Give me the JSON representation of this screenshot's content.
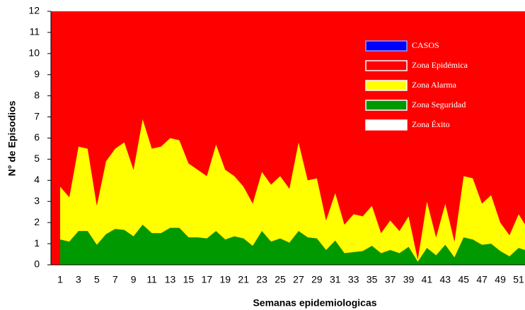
{
  "chart_data": {
    "type": "stacked_area",
    "xlabel": "Semanas epidemiologicas",
    "ylabel": "N° de Episodios",
    "categories": [
      "1",
      null,
      "3",
      null,
      "5",
      null,
      "7",
      null,
      "9",
      null,
      "11",
      null,
      "13",
      null,
      "15",
      null,
      "17",
      null,
      "19",
      null,
      "21",
      null,
      "23",
      null,
      "25",
      null,
      "27",
      null,
      "29",
      null,
      "31",
      null,
      "33",
      null,
      "35",
      null,
      "37",
      null,
      "39",
      null,
      "41",
      null,
      "43",
      null,
      "45",
      null,
      "47",
      null,
      "49",
      null,
      "51",
      null
    ],
    "ylim": [
      0,
      12
    ],
    "yticks": [
      0,
      1,
      2,
      3,
      4,
      5,
      6,
      7,
      8,
      9,
      10,
      11,
      12
    ],
    "legend_position": "upper right",
    "series": [
      {
        "name": "CASOS",
        "color": "#0000ff"
      },
      {
        "name": "Zona Epidémica",
        "color": "#ff0000",
        "values": [
          8.3,
          8.8,
          6.4,
          6.5,
          9.2,
          7.1,
          6.5,
          6.2,
          7.5,
          5.1,
          6.5,
          6.4,
          6.0,
          6.1,
          7.2,
          7.5,
          7.8,
          6.3,
          7.5,
          7.8,
          8.3,
          9.1,
          7.6,
          8.2,
          7.8,
          8.4,
          6.2,
          8.0,
          7.9,
          9.9,
          8.6,
          10.1,
          9.6,
          9.7,
          9.2,
          10.5,
          9.9,
          10.4,
          9.7,
          11.75,
          9.0,
          10.7,
          9.1,
          10.9,
          7.8,
          7.9,
          9.1,
          8.7,
          10.0,
          10.6,
          9.6,
          10.3
        ]
      },
      {
        "name": "Zona Alarma",
        "color": "#ffff00",
        "values": [
          2.5,
          2.1,
          4.0,
          3.9,
          1.85,
          3.45,
          3.8,
          4.15,
          3.15,
          5.0,
          4.0,
          4.1,
          4.25,
          4.15,
          3.5,
          3.2,
          2.95,
          4.1,
          3.3,
          2.85,
          2.45,
          2.0,
          2.8,
          2.7,
          2.95,
          2.55,
          4.2,
          2.7,
          2.85,
          1.4,
          2.25,
          1.35,
          1.8,
          1.65,
          1.9,
          0.95,
          1.4,
          1.05,
          1.45,
          0.1,
          2.2,
          0.85,
          1.95,
          0.75,
          2.9,
          2.9,
          1.95,
          2.3,
          1.35,
          1.0,
          1.6,
          1.05
        ]
      },
      {
        "name": "Zona Seguridad",
        "color": "#009900",
        "values": [
          1.2,
          1.1,
          1.6,
          1.6,
          0.95,
          1.45,
          1.7,
          1.65,
          1.35,
          1.9,
          1.5,
          1.5,
          1.75,
          1.75,
          1.3,
          1.3,
          1.25,
          1.6,
          1.2,
          1.35,
          1.25,
          0.9,
          1.6,
          1.1,
          1.25,
          1.05,
          1.6,
          1.3,
          1.25,
          0.7,
          1.15,
          0.55,
          0.6,
          0.65,
          0.9,
          0.55,
          0.7,
          0.55,
          0.85,
          0.15,
          0.8,
          0.45,
          0.95,
          0.35,
          1.3,
          1.2,
          0.95,
          1.0,
          0.65,
          0.4,
          0.8,
          0.65
        ]
      },
      {
        "name": "Zona Éxito",
        "color": "#ffffff"
      }
    ]
  }
}
